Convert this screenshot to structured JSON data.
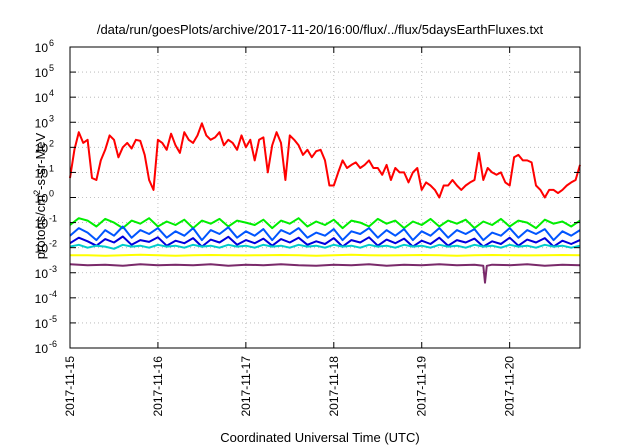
{
  "chart_data": {
    "type": "line",
    "title": "/data/run/goesPlots/archive/2017-11-20/16:00/flux/../flux/5daysEarthFluxes.txt",
    "xlabel": "Coordinated Universal Time (UTC)",
    "ylabel": {
      "prefix": "protons/cm",
      "sup": "2",
      "suffix": "-s-sr-MeV"
    },
    "yscale": "log",
    "ylim": [
      1e-06,
      1000000.0
    ],
    "xlim": [
      0,
      5.8
    ],
    "grid": true,
    "x_ticks": [
      {
        "value": 0,
        "label": "2017-11-15"
      },
      {
        "value": 1,
        "label": "2017-11-16"
      },
      {
        "value": 2,
        "label": "2017-11-17"
      },
      {
        "value": 3,
        "label": "2017-11-18"
      },
      {
        "value": 4,
        "label": "2017-11-19"
      },
      {
        "value": 5,
        "label": "2017-11-20"
      }
    ],
    "y_ticks": [
      {
        "exp": -6
      },
      {
        "exp": -5
      },
      {
        "exp": -4
      },
      {
        "exp": -3
      },
      {
        "exp": -2
      },
      {
        "exp": -1
      },
      {
        "exp": 0
      },
      {
        "exp": 1
      },
      {
        "exp": 2
      },
      {
        "exp": 3
      },
      {
        "exp": 4
      },
      {
        "exp": 5
      },
      {
        "exp": 6
      }
    ],
    "series": [
      {
        "color": "#ff0000",
        "x": [
          0,
          0.05,
          0.1,
          0.15,
          0.2,
          0.25,
          0.3,
          0.35,
          0.4,
          0.45,
          0.5,
          0.55,
          0.6,
          0.65,
          0.7,
          0.75,
          0.8,
          0.85,
          0.9,
          0.95,
          1.0,
          1.05,
          1.1,
          1.15,
          1.2,
          1.25,
          1.3,
          1.35,
          1.4,
          1.45,
          1.5,
          1.55,
          1.6,
          1.65,
          1.7,
          1.75,
          1.8,
          1.85,
          1.9,
          1.95,
          2.0,
          2.05,
          2.1,
          2.15,
          2.2,
          2.25,
          2.3,
          2.35,
          2.4,
          2.45,
          2.5,
          2.55,
          2.6,
          2.65,
          2.7,
          2.75,
          2.8,
          2.85,
          2.9,
          2.95,
          3.0,
          3.05,
          3.1,
          3.15,
          3.2,
          3.25,
          3.3,
          3.35,
          3.4,
          3.45,
          3.5,
          3.55,
          3.6,
          3.65,
          3.7,
          3.75,
          3.8,
          3.85,
          3.9,
          3.95,
          4.0,
          4.05,
          4.1,
          4.15,
          4.2,
          4.25,
          4.3,
          4.35,
          4.4,
          4.45,
          4.5,
          4.55,
          4.6,
          4.65,
          4.7,
          4.75,
          4.8,
          4.85,
          4.9,
          4.95,
          5.0,
          5.05,
          5.1,
          5.15,
          5.2,
          5.25,
          5.3,
          5.35,
          5.4,
          5.45,
          5.5,
          5.55,
          5.6,
          5.65,
          5.7,
          5.75,
          5.8
        ],
        "y": [
          6,
          80,
          400,
          150,
          200,
          6,
          5,
          30,
          80,
          300,
          200,
          40,
          100,
          150,
          90,
          200,
          180,
          50,
          5,
          2,
          200,
          150,
          80,
          350,
          120,
          60,
          400,
          200,
          150,
          300,
          900,
          300,
          200,
          250,
          400,
          120,
          200,
          150,
          80,
          300,
          100,
          200,
          30,
          200,
          250,
          10,
          120,
          400,
          150,
          5,
          300,
          200,
          120,
          50,
          80,
          40,
          70,
          80,
          30,
          3,
          3,
          10,
          30,
          15,
          20,
          25,
          15,
          20,
          30,
          15,
          15,
          8,
          20,
          5,
          15,
          10,
          10,
          4,
          10,
          15,
          2,
          4,
          3,
          2,
          1,
          3,
          3,
          5,
          3,
          2,
          3,
          4,
          5,
          60,
          5,
          15,
          10,
          8,
          10,
          4,
          3,
          40,
          50,
          30,
          30,
          25,
          3,
          2,
          1,
          2,
          2,
          1.5,
          2,
          3,
          4,
          5,
          20
        ]
      },
      {
        "color": "#00ee00",
        "x": [
          0,
          0.1,
          0.2,
          0.3,
          0.4,
          0.5,
          0.6,
          0.7,
          0.8,
          0.9,
          1.0,
          1.1,
          1.2,
          1.3,
          1.4,
          1.5,
          1.6,
          1.7,
          1.8,
          1.9,
          2.0,
          2.1,
          2.2,
          2.3,
          2.4,
          2.5,
          2.6,
          2.7,
          2.8,
          2.9,
          3.0,
          3.1,
          3.2,
          3.3,
          3.4,
          3.5,
          3.6,
          3.7,
          3.8,
          3.9,
          4.0,
          4.1,
          4.2,
          4.3,
          4.4,
          4.5,
          4.6,
          4.7,
          4.8,
          4.9,
          5.0,
          5.1,
          5.2,
          5.3,
          5.4,
          5.5,
          5.6,
          5.7,
          5.8
        ],
        "y": [
          0.08,
          0.15,
          0.12,
          0.07,
          0.14,
          0.1,
          0.06,
          0.12,
          0.09,
          0.15,
          0.07,
          0.11,
          0.08,
          0.13,
          0.06,
          0.12,
          0.09,
          0.14,
          0.07,
          0.12,
          0.1,
          0.08,
          0.13,
          0.06,
          0.12,
          0.09,
          0.15,
          0.07,
          0.11,
          0.08,
          0.13,
          0.06,
          0.12,
          0.1,
          0.07,
          0.14,
          0.09,
          0.12,
          0.06,
          0.11,
          0.08,
          0.14,
          0.07,
          0.12,
          0.09,
          0.13,
          0.06,
          0.11,
          0.08,
          0.14,
          0.07,
          0.12,
          0.1,
          0.06,
          0.13,
          0.09,
          0.11,
          0.07,
          0.12
        ]
      },
      {
        "color": "#0055ff",
        "x": [
          0,
          0.1,
          0.2,
          0.3,
          0.4,
          0.5,
          0.6,
          0.7,
          0.8,
          0.9,
          1.0,
          1.1,
          1.2,
          1.3,
          1.4,
          1.5,
          1.6,
          1.7,
          1.8,
          1.9,
          2.0,
          2.1,
          2.2,
          2.3,
          2.4,
          2.5,
          2.6,
          2.7,
          2.8,
          2.9,
          3.0,
          3.1,
          3.2,
          3.3,
          3.4,
          3.5,
          3.6,
          3.7,
          3.8,
          3.9,
          4.0,
          4.1,
          4.2,
          4.3,
          4.4,
          4.5,
          4.6,
          4.7,
          4.8,
          4.9,
          5.0,
          5.1,
          5.2,
          5.3,
          5.4,
          5.5,
          5.6,
          5.7,
          5.8
        ],
        "y": [
          0.03,
          0.06,
          0.04,
          0.02,
          0.05,
          0.03,
          0.07,
          0.025,
          0.05,
          0.035,
          0.06,
          0.025,
          0.045,
          0.03,
          0.06,
          0.02,
          0.05,
          0.035,
          0.065,
          0.025,
          0.045,
          0.03,
          0.055,
          0.02,
          0.05,
          0.035,
          0.06,
          0.025,
          0.04,
          0.03,
          0.055,
          0.02,
          0.045,
          0.035,
          0.06,
          0.025,
          0.05,
          0.03,
          0.055,
          0.02,
          0.045,
          0.03,
          0.06,
          0.025,
          0.05,
          0.035,
          0.055,
          0.02,
          0.04,
          0.03,
          0.06,
          0.025,
          0.05,
          0.035,
          0.055,
          0.02,
          0.045,
          0.03,
          0.05
        ]
      },
      {
        "color": "#0000dd",
        "x": [
          0,
          0.1,
          0.2,
          0.3,
          0.4,
          0.5,
          0.6,
          0.7,
          0.8,
          0.9,
          1.0,
          1.1,
          1.2,
          1.3,
          1.4,
          1.5,
          1.6,
          1.7,
          1.8,
          1.9,
          2.0,
          2.1,
          2.2,
          2.3,
          2.4,
          2.5,
          2.6,
          2.7,
          2.8,
          2.9,
          3.0,
          3.1,
          3.2,
          3.3,
          3.4,
          3.5,
          3.6,
          3.7,
          3.8,
          3.9,
          4.0,
          4.1,
          4.2,
          4.3,
          4.4,
          4.5,
          4.6,
          4.7,
          4.8,
          4.9,
          5.0,
          5.1,
          5.2,
          5.3,
          5.4,
          5.5,
          5.6,
          5.7,
          5.8
        ],
        "y": [
          0.015,
          0.025,
          0.018,
          0.012,
          0.022,
          0.016,
          0.028,
          0.013,
          0.02,
          0.017,
          0.026,
          0.012,
          0.019,
          0.015,
          0.024,
          0.011,
          0.021,
          0.016,
          0.027,
          0.013,
          0.02,
          0.015,
          0.023,
          0.012,
          0.022,
          0.016,
          0.025,
          0.013,
          0.018,
          0.014,
          0.024,
          0.011,
          0.02,
          0.016,
          0.026,
          0.012,
          0.021,
          0.015,
          0.023,
          0.011,
          0.019,
          0.014,
          0.025,
          0.012,
          0.02,
          0.016,
          0.023,
          0.011,
          0.018,
          0.014,
          0.025,
          0.012,
          0.021,
          0.016,
          0.024,
          0.011,
          0.019,
          0.014,
          0.02
        ]
      },
      {
        "color": "#00cccc",
        "x": [
          0,
          0.1,
          0.2,
          0.3,
          0.4,
          0.5,
          0.6,
          0.7,
          0.8,
          0.9,
          1.0,
          1.1,
          1.2,
          1.3,
          1.4,
          1.5,
          1.6,
          1.7,
          1.8,
          1.9,
          2.0,
          2.1,
          2.2,
          2.3,
          2.4,
          2.5,
          2.6,
          2.7,
          2.8,
          2.9,
          3.0,
          3.1,
          3.2,
          3.3,
          3.4,
          3.5,
          3.6,
          3.7,
          3.8,
          3.9,
          4.0,
          4.1,
          4.2,
          4.3,
          4.4,
          4.5,
          4.6,
          4.7,
          4.8,
          4.9,
          5.0,
          5.1,
          5.2,
          5.3,
          5.4,
          5.5,
          5.6,
          5.7,
          5.8
        ],
        "y": [
          0.011,
          0.013,
          0.01,
          0.012,
          0.011,
          0.009,
          0.013,
          0.011,
          0.012,
          0.01,
          0.013,
          0.011,
          0.012,
          0.01,
          0.013,
          0.011,
          0.012,
          0.01,
          0.013,
          0.011,
          0.012,
          0.01,
          0.013,
          0.011,
          0.012,
          0.01,
          0.013,
          0.011,
          0.012,
          0.01,
          0.013,
          0.011,
          0.012,
          0.01,
          0.013,
          0.011,
          0.012,
          0.01,
          0.013,
          0.011,
          0.012,
          0.01,
          0.013,
          0.011,
          0.012,
          0.01,
          0.013,
          0.011,
          0.012,
          0.01,
          0.013,
          0.011,
          0.012,
          0.01,
          0.013,
          0.011,
          0.012,
          0.01,
          0.012
        ]
      },
      {
        "color": "#ffff00",
        "x": [
          0,
          0.2,
          0.4,
          0.6,
          0.8,
          1.0,
          1.2,
          1.4,
          1.6,
          1.8,
          2.0,
          2.2,
          2.4,
          2.6,
          2.8,
          3.0,
          3.2,
          3.4,
          3.6,
          3.8,
          4.0,
          4.2,
          4.4,
          4.6,
          4.8,
          5.0,
          5.2,
          5.4,
          5.6,
          5.8
        ],
        "y": [
          0.005,
          0.005,
          0.0048,
          0.005,
          0.0052,
          0.005,
          0.0048,
          0.005,
          0.0051,
          0.005,
          0.0049,
          0.005,
          0.0051,
          0.005,
          0.0048,
          0.005,
          0.0052,
          0.005,
          0.0049,
          0.005,
          0.0051,
          0.005,
          0.0048,
          0.005,
          0.0051,
          0.005,
          0.0049,
          0.005,
          0.0051,
          0.005
        ]
      },
      {
        "color": "#7a2a6a",
        "x": [
          0,
          0.2,
          0.4,
          0.6,
          0.8,
          1.0,
          1.2,
          1.4,
          1.6,
          1.8,
          2.0,
          2.2,
          2.4,
          2.6,
          2.8,
          3.0,
          3.2,
          3.4,
          3.6,
          3.8,
          4.0,
          4.2,
          4.4,
          4.6,
          4.7,
          4.72,
          4.74,
          4.8,
          5.0,
          5.2,
          5.4,
          5.6,
          5.8
        ],
        "y": [
          0.0022,
          0.002,
          0.0021,
          0.0019,
          0.0022,
          0.002,
          0.0021,
          0.002,
          0.0022,
          0.0019,
          0.0021,
          0.002,
          0.0022,
          0.002,
          0.0019,
          0.0021,
          0.002,
          0.0022,
          0.0019,
          0.0021,
          0.002,
          0.0022,
          0.002,
          0.0021,
          0.0019,
          0.0004,
          0.0019,
          0.0021,
          0.002,
          0.0022,
          0.0019,
          0.0021,
          0.002
        ]
      }
    ]
  }
}
